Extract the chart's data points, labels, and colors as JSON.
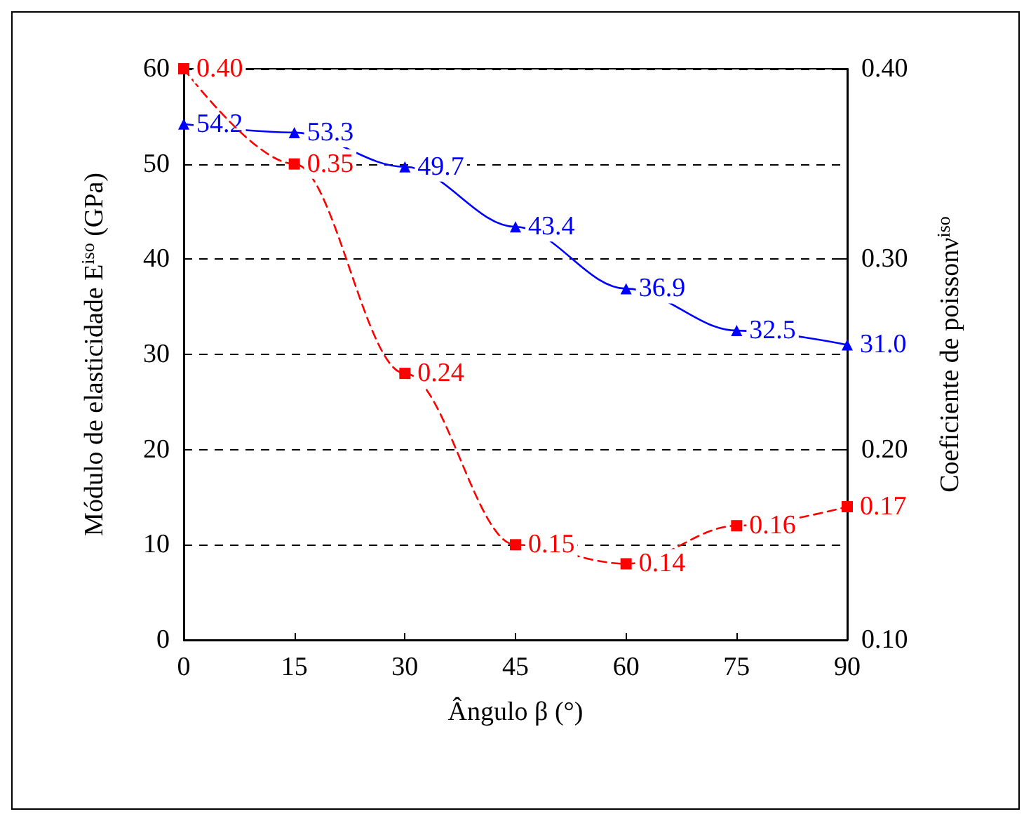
{
  "chart_data": {
    "type": "line",
    "xlabel": "Ângulo β (°)",
    "ylabel": "Módulo de elasticidade E$^{iso}$ (GPa)",
    "y2label": "Coeficiente de poissonν$^{iso}$",
    "x": [
      0,
      15,
      30,
      45,
      60,
      75,
      90
    ],
    "xlim": [
      0,
      90
    ],
    "xticks": [
      0,
      15,
      30,
      45,
      60,
      75,
      90
    ],
    "ylim": [
      0,
      60
    ],
    "yticks": [
      0,
      10,
      20,
      30,
      40,
      50,
      60
    ],
    "y2lim": [
      0.1,
      0.4
    ],
    "y2ticks": [
      {
        "value": 0.1,
        "label": "0.10"
      },
      {
        "value": 0.2,
        "label": "0.20"
      },
      {
        "value": 0.3,
        "label": "0.30"
      },
      {
        "value": 0.4,
        "label": "0.40"
      }
    ],
    "grid": "y",
    "series": [
      {
        "color": "#0000ff",
        "marker": "triangle",
        "line_style": "solid",
        "values": [
          54.2,
          53.3,
          49.7,
          43.4,
          36.9,
          32.5,
          31.0
        ],
        "value_labels": [
          "54.2",
          "53.3",
          "49.7",
          "43.4",
          "36.9",
          "32.5",
          "31.0"
        ]
      },
      {
        "color": "#ff0000",
        "marker": "square",
        "line_style": "dashed",
        "axis": "y2",
        "values": [
          0.4,
          0.35,
          0.24,
          0.15,
          0.14,
          0.16,
          0.17
        ],
        "value_labels": [
          "0.40",
          "0.35",
          "0.24",
          "0.15",
          "0.14",
          "0.16",
          "0.17"
        ]
      }
    ]
  }
}
